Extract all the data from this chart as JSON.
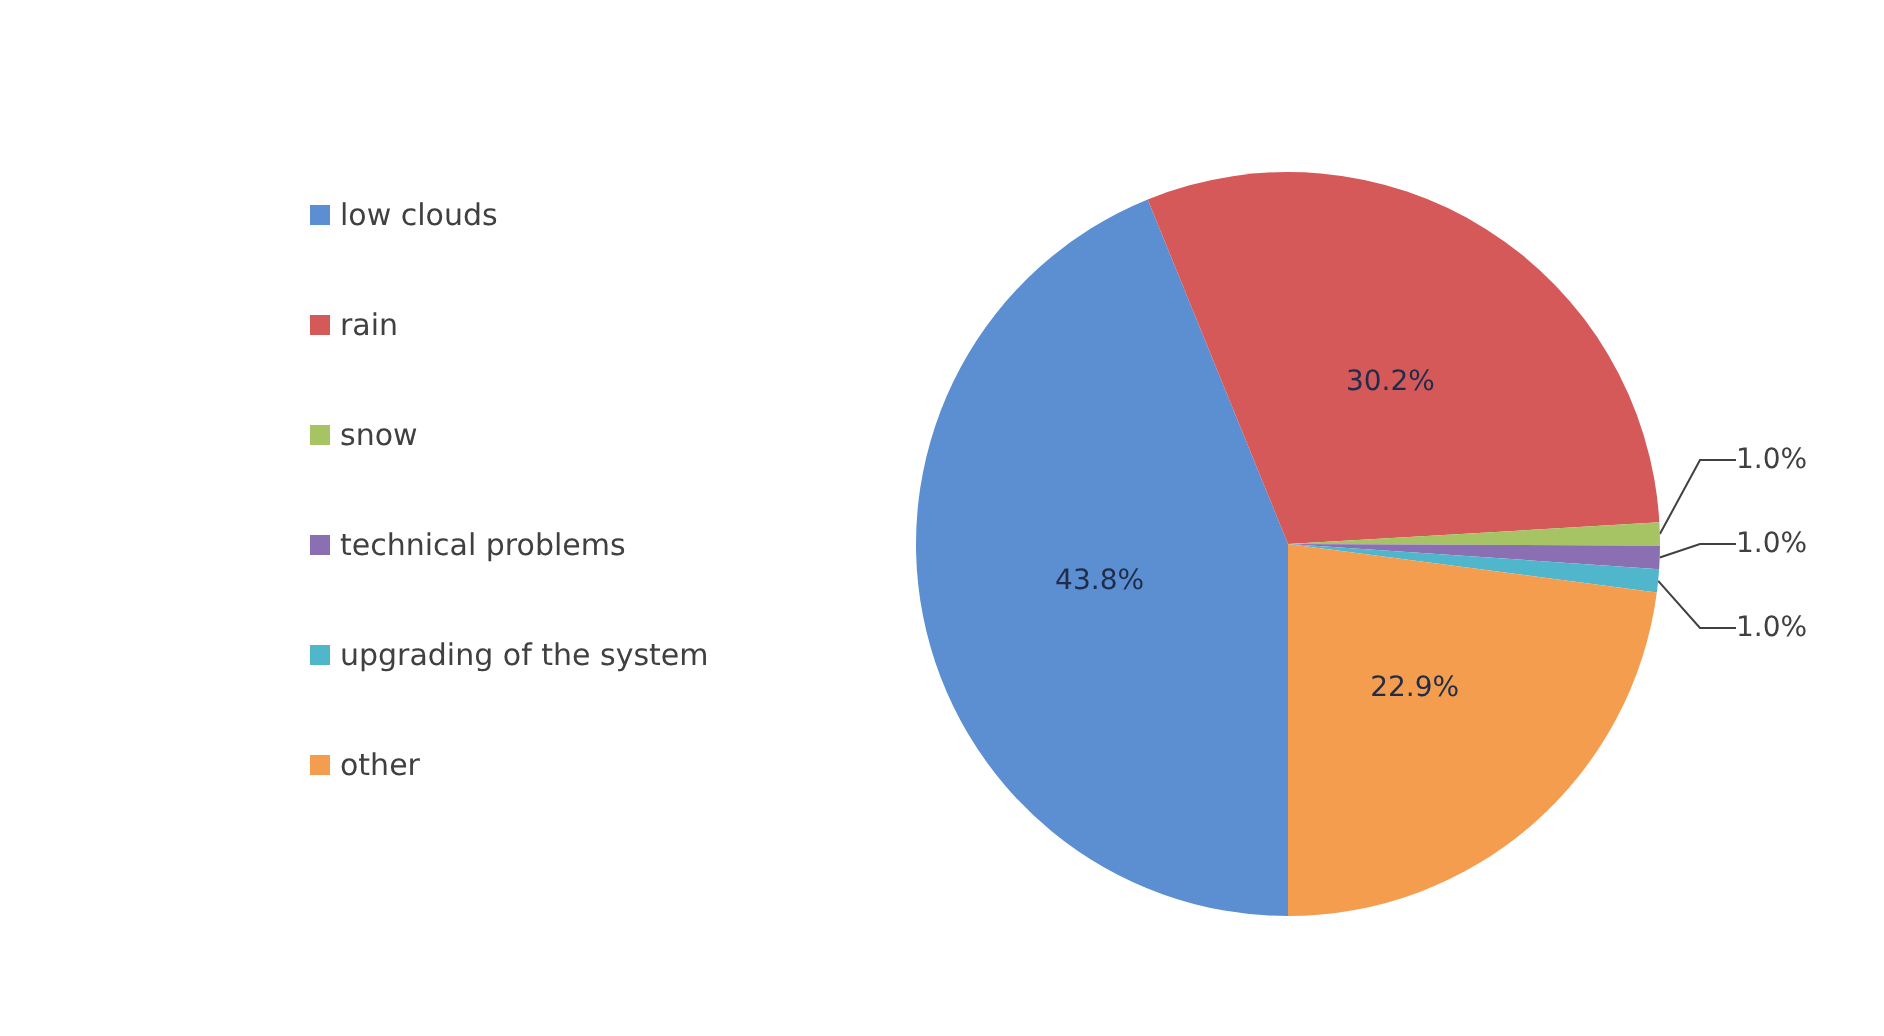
{
  "chart_data": {
    "type": "pie",
    "categories": [
      "low clouds",
      "rain",
      "snow",
      "technical problems",
      "upgrading of the system",
      "other"
    ],
    "values": [
      43.8,
      30.2,
      1.0,
      1.0,
      1.0,
      22.9
    ],
    "value_labels": [
      "43.8%",
      "30.2%",
      "1.0%",
      "1.0%",
      "1.0%",
      "22.9%"
    ],
    "colors": [
      "#5b8fd1",
      "#d6595a",
      "#a6c464",
      "#8a70b3",
      "#4fb6cc",
      "#f59d4f"
    ],
    "legend": "left"
  }
}
